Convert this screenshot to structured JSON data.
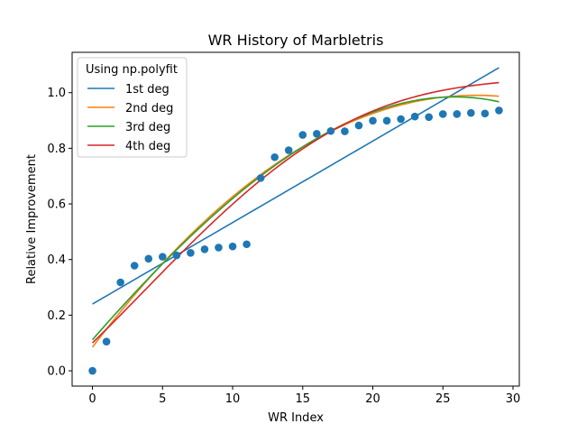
{
  "chart_data": {
    "type": "scatter",
    "title": "WR History of Marbletris",
    "xlabel": "WR Index",
    "ylabel": "Relative Improvement",
    "xlim": [
      -1.45,
      30.45
    ],
    "ylim": [
      -0.055,
      1.145
    ],
    "xticks": [
      0,
      5,
      10,
      15,
      20,
      25,
      30
    ],
    "yticks": [
      0.0,
      0.2,
      0.4,
      0.6,
      0.8,
      1.0
    ],
    "xtick_labels": [
      "0",
      "5",
      "10",
      "15",
      "20",
      "25",
      "30"
    ],
    "ytick_labels": [
      "0.0",
      "0.2",
      "0.4",
      "0.6",
      "0.8",
      "1.0"
    ],
    "grid": false,
    "legend": {
      "title": "Using np.polyfit",
      "placement": "top-left",
      "entries": [
        "1st deg",
        "2nd deg",
        "3rd deg",
        "4th deg"
      ]
    },
    "points": {
      "color": "#1f77b4",
      "x": [
        0,
        1,
        2,
        3,
        4,
        5,
        6,
        7,
        8,
        9,
        10,
        11,
        12,
        13,
        14,
        15,
        16,
        17,
        18,
        19,
        20,
        21,
        22,
        23,
        24,
        25,
        26,
        27,
        28,
        29
      ],
      "y": [
        0.0,
        0.105,
        0.318,
        0.378,
        0.403,
        0.41,
        0.415,
        0.424,
        0.437,
        0.443,
        0.447,
        0.455,
        0.693,
        0.768,
        0.793,
        0.848,
        0.852,
        0.862,
        0.861,
        0.882,
        0.899,
        0.899,
        0.905,
        0.914,
        0.912,
        0.923,
        0.923,
        0.927,
        0.925,
        0.936
      ]
    },
    "series": [
      {
        "name": "1st deg",
        "color": "#1f77b4",
        "x_range": [
          0,
          29
        ],
        "coefficients": [
          0.24,
          0.0293
        ]
      },
      {
        "name": "2nd deg",
        "color": "#ff7f0e",
        "x_range": [
          0,
          29
        ],
        "coefficients": [
          0.085,
          0.0662,
          -0.00121
        ]
      },
      {
        "name": "3rd deg",
        "color": "#2ca02c",
        "x_range": [
          0,
          29
        ],
        "coefficients": [
          0.1117,
          0.0576,
          -0.000534,
          -1.5e-05
        ]
      },
      {
        "name": "4th deg",
        "color": "#d62728",
        "x_range": [
          0,
          29
        ],
        "coefficients": [
          0.1004,
          0.0486,
          0.00085,
          -8.44e-05,
          1.23e-06
        ]
      }
    ]
  }
}
